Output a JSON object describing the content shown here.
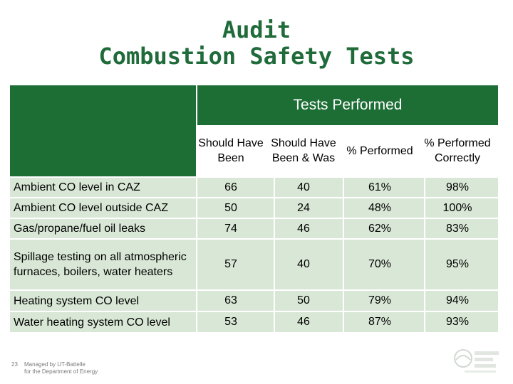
{
  "title": {
    "line1": "Audit",
    "line2": "Combustion Safety Tests"
  },
  "table": {
    "group_header": "Tests Performed",
    "columns": [
      "Should Have Been",
      "Should Have Been & Was",
      "% Performed",
      "% Performed Correctly"
    ],
    "rows": [
      {
        "label": "Ambient CO level in CAZ",
        "values": [
          "66",
          "40",
          "61%",
          "98%"
        ]
      },
      {
        "label": "Ambient CO level outside CAZ",
        "values": [
          "50",
          "24",
          "48%",
          "100%"
        ]
      },
      {
        "label": "Gas/propane/fuel oil leaks",
        "values": [
          "74",
          "46",
          "62%",
          "83%"
        ]
      },
      {
        "label": "Spillage testing on all atmospheric furnaces, boilers, water heaters",
        "values": [
          "57",
          "40",
          "70%",
          "95%"
        ]
      },
      {
        "label": "Heating system CO level",
        "values": [
          "63",
          "50",
          "79%",
          "94%"
        ]
      },
      {
        "label": "Water heating system CO level",
        "values": [
          "53",
          "46",
          "87%",
          "93%"
        ]
      }
    ]
  },
  "footer": {
    "page_number": "23",
    "managed_by": "Managed by UT-Battelle",
    "for_department": "for the Department of Energy"
  },
  "colors": {
    "title": "#1f6b3a",
    "band": "#1c6e35",
    "row_shade": "#d9e8d6"
  }
}
